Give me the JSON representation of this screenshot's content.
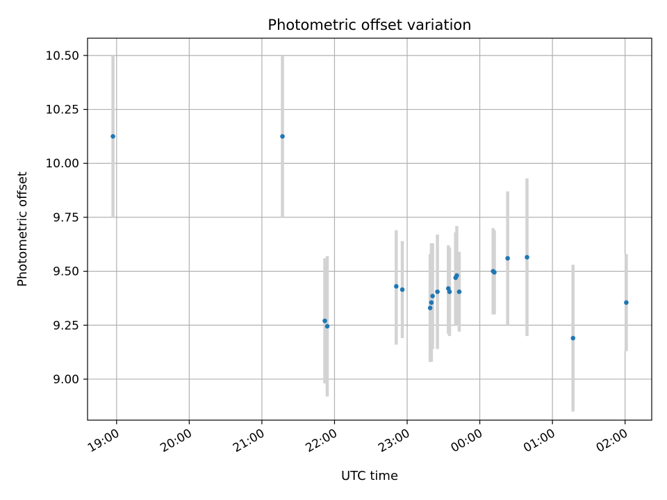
{
  "chart_data": {
    "type": "scatter",
    "title": "Photometric offset variation",
    "xlabel": "UTC time",
    "ylabel": "Photometric offset",
    "x_ticks": [
      "19:00",
      "20:00",
      "21:00",
      "22:00",
      "23:00",
      "00:00",
      "01:00",
      "02:00"
    ],
    "y_ticks": [
      "9.00",
      "9.25",
      "9.50",
      "9.75",
      "10.00",
      "10.25",
      "10.50"
    ],
    "y_tick_values": [
      9.0,
      9.25,
      9.5,
      9.75,
      10.0,
      10.25,
      10.5
    ],
    "xlim": [
      "18:36",
      "02:22"
    ],
    "ylim": [
      8.81,
      10.58
    ],
    "grid": true,
    "marker_color": "#1f77b4",
    "errorbar_color": "#d3d3d3",
    "points": [
      {
        "x": "18:57",
        "y": 10.125,
        "low": 9.75,
        "high": 10.5
      },
      {
        "x": "21:17",
        "y": 10.125,
        "low": 9.75,
        "high": 10.5
      },
      {
        "x": "21:52",
        "y": 9.27,
        "low": 8.98,
        "high": 9.56
      },
      {
        "x": "21:54",
        "y": 9.245,
        "low": 8.92,
        "high": 9.57
      },
      {
        "x": "22:51",
        "y": 9.43,
        "low": 9.16,
        "high": 9.69
      },
      {
        "x": "22:56",
        "y": 9.415,
        "low": 9.19,
        "high": 9.64
      },
      {
        "x": "23:19",
        "y": 9.33,
        "low": 9.08,
        "high": 9.58
      },
      {
        "x": "23:20",
        "y": 9.355,
        "low": 9.08,
        "high": 9.63
      },
      {
        "x": "23:21",
        "y": 9.385,
        "low": 9.14,
        "high": 9.63
      },
      {
        "x": "23:25",
        "y": 9.405,
        "low": 9.14,
        "high": 9.67
      },
      {
        "x": "23:34",
        "y": 9.42,
        "low": 9.21,
        "high": 9.62
      },
      {
        "x": "23:35",
        "y": 9.405,
        "low": 9.2,
        "high": 9.61
      },
      {
        "x": "23:40",
        "y": 9.47,
        "low": 9.25,
        "high": 9.68
      },
      {
        "x": "23:41",
        "y": 9.48,
        "low": 9.25,
        "high": 9.71
      },
      {
        "x": "23:43",
        "y": 9.405,
        "low": 9.22,
        "high": 9.59
      },
      {
        "x": "00:11",
        "y": 9.5,
        "low": 9.3,
        "high": 9.7
      },
      {
        "x": "00:12",
        "y": 9.495,
        "low": 9.3,
        "high": 9.69
      },
      {
        "x": "00:23",
        "y": 9.56,
        "low": 9.25,
        "high": 9.87
      },
      {
        "x": "00:39",
        "y": 9.565,
        "low": 9.2,
        "high": 9.93
      },
      {
        "x": "01:17",
        "y": 9.19,
        "low": 8.85,
        "high": 9.53
      },
      {
        "x": "02:01",
        "y": 9.355,
        "low": 9.13,
        "high": 9.58
      }
    ]
  }
}
